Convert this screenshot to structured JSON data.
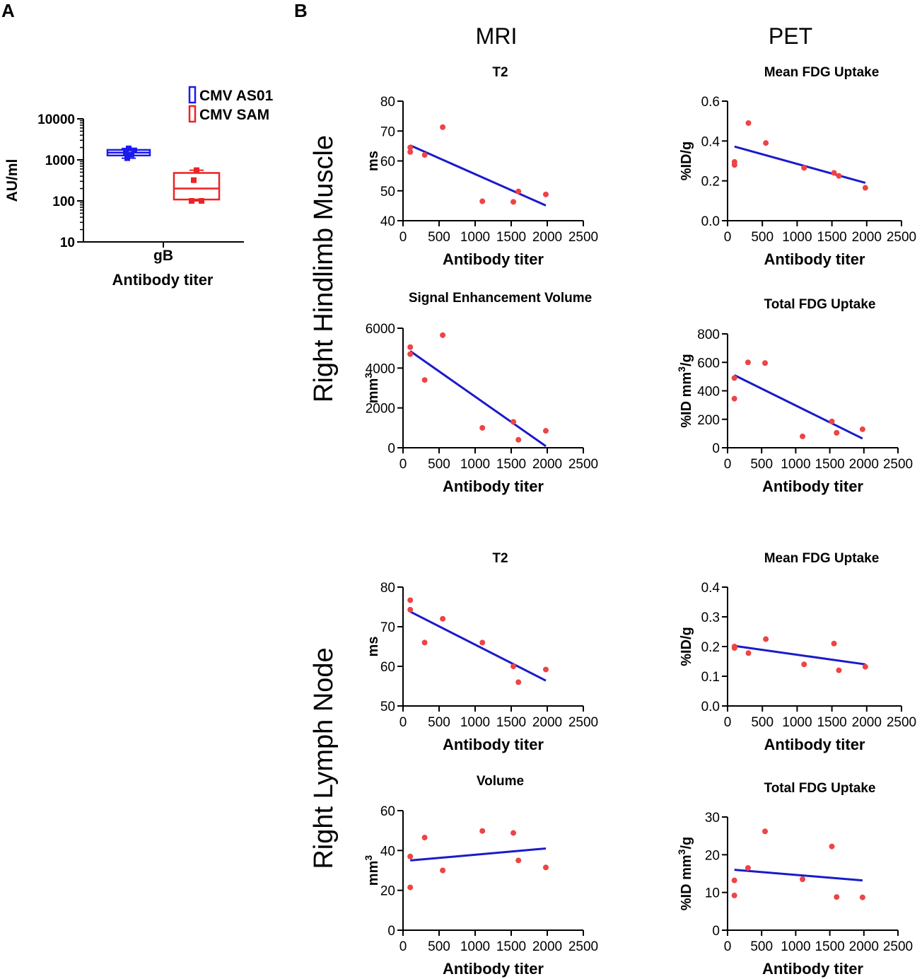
{
  "panel_labels": {
    "a": "A",
    "b": "B"
  },
  "column_headers": {
    "mri": "MRI",
    "pet": "PET"
  },
  "row_labels": {
    "muscle": "Right Hindlimb Muscle",
    "lymph": "Right Lymph Node"
  },
  "colors": {
    "line": "#1a1acc",
    "point": "#ee4444",
    "as01": "#1a1aee",
    "sam": "#ee2222",
    "axis": "#000000"
  },
  "chart_data": [
    {
      "id": "A",
      "type": "boxplot",
      "title": "",
      "xlabel": "Antibody titer",
      "ylabel": "AU/ml",
      "yscale": "log",
      "ylim": [
        10,
        10000
      ],
      "yticks": [
        10,
        100,
        1000,
        10000
      ],
      "yticklabels": [
        "10",
        "100",
        "1000",
        "10000"
      ],
      "categories": [
        "gB"
      ],
      "legend": [
        "CMV AS01",
        "CMV SAM"
      ],
      "legend_position": "top-right",
      "series": [
        {
          "name": "CMV AS01",
          "min": 1100,
          "q1": 1280,
          "median": 1500,
          "q3": 1750,
          "max": 1900,
          "points": [
            1900,
            1700,
            1500,
            1350,
            1100
          ]
        },
        {
          "name": "CMV SAM",
          "min": 100,
          "q1": 108,
          "median": 200,
          "q3": 480,
          "max": 560,
          "points": [
            560,
            320,
            100,
            100
          ]
        }
      ]
    },
    {
      "id": "B1",
      "type": "scatter",
      "title": "T2",
      "xlabel": "Antibody titer",
      "ylabel": "ms",
      "xlim": [
        0,
        2500
      ],
      "ylim": [
        40,
        80
      ],
      "xticks": [
        0,
        500,
        1000,
        1500,
        2000,
        2500
      ],
      "yticks": [
        40,
        50,
        60,
        70,
        80
      ],
      "x": [
        100,
        100,
        300,
        550,
        1100,
        1530,
        1600,
        1980
      ],
      "y": [
        64.5,
        63,
        62,
        71.3,
        46.5,
        46.3,
        49.8,
        48.8
      ],
      "fit": [
        [
          100,
          65.2
        ],
        [
          1980,
          45.1
        ]
      ]
    },
    {
      "id": "B2",
      "type": "scatter",
      "title": "Mean FDG Uptake",
      "xlabel": "Antibody titer",
      "ylabel": "%ID/g",
      "xlim": [
        0,
        2500
      ],
      "ylim": [
        0,
        0.6
      ],
      "xticks": [
        0,
        500,
        1000,
        1500,
        2000,
        2500
      ],
      "yticks": [
        0.0,
        0.2,
        0.4,
        0.6
      ],
      "yticklabels": [
        "0.0",
        "0.2",
        "0.4",
        "0.6"
      ],
      "x": [
        100,
        100,
        300,
        550,
        1100,
        1530,
        1600,
        1980
      ],
      "y": [
        0.295,
        0.28,
        0.49,
        0.39,
        0.265,
        0.24,
        0.225,
        0.165
      ],
      "fit": [
        [
          100,
          0.372
        ],
        [
          1980,
          0.19
        ]
      ]
    },
    {
      "id": "B3",
      "type": "scatter",
      "title": "Signal Enhancement Volume",
      "xlabel": "Antibody titer",
      "ylabel": "mm3",
      "xlim": [
        0,
        2500
      ],
      "ylim": [
        0,
        6000
      ],
      "xticks": [
        0,
        500,
        1000,
        1500,
        2000,
        2500
      ],
      "yticks": [
        0,
        2000,
        4000,
        6000
      ],
      "x": [
        100,
        100,
        300,
        550,
        1100,
        1530,
        1600,
        1980
      ],
      "y": [
        5050,
        4700,
        3400,
        5650,
        1000,
        1300,
        400,
        850
      ],
      "fit": [
        [
          100,
          4850
        ],
        [
          1980,
          80
        ]
      ]
    },
    {
      "id": "B4",
      "type": "scatter",
      "title": "Total FDG Uptake",
      "xlabel": "Antibody titer",
      "ylabel": "%ID mm3/g",
      "xlim": [
        0,
        2500
      ],
      "ylim": [
        0,
        800
      ],
      "xticks": [
        0,
        500,
        1000,
        1500,
        2000,
        2500
      ],
      "yticks": [
        0,
        200,
        400,
        600,
        800
      ],
      "x": [
        100,
        100,
        300,
        550,
        1100,
        1530,
        1600,
        1980
      ],
      "y": [
        490,
        345,
        600,
        595,
        80,
        185,
        105,
        130
      ],
      "fit": [
        [
          100,
          510
        ],
        [
          1980,
          65
        ]
      ]
    },
    {
      "id": "B5",
      "type": "scatter",
      "title": "T2",
      "xlabel": "Antibody titer",
      "ylabel": "ms",
      "xlim": [
        0,
        2500
      ],
      "ylim": [
        50,
        80
      ],
      "xticks": [
        0,
        500,
        1000,
        1500,
        2000,
        2500
      ],
      "yticks": [
        50,
        60,
        70,
        80
      ],
      "x": [
        100,
        100,
        300,
        550,
        1100,
        1530,
        1600,
        1980
      ],
      "y": [
        76.7,
        74.3,
        66,
        72,
        66,
        60,
        56,
        59.2
      ],
      "fit": [
        [
          100,
          73.8
        ],
        [
          1980,
          56.4
        ]
      ]
    },
    {
      "id": "B6",
      "type": "scatter",
      "title": "Mean FDG Uptake",
      "xlabel": "Antibody titer",
      "ylabel": "%ID/g",
      "xlim": [
        0,
        2500
      ],
      "ylim": [
        0,
        0.4
      ],
      "xticks": [
        0,
        500,
        1000,
        1500,
        2000,
        2500
      ],
      "yticks": [
        0.0,
        0.1,
        0.2,
        0.3,
        0.4
      ],
      "yticklabels": [
        "0.0",
        "0.1",
        "0.2",
        "0.3",
        "0.4"
      ],
      "x": [
        100,
        100,
        300,
        550,
        1100,
        1530,
        1600,
        1980
      ],
      "y": [
        0.2,
        0.195,
        0.178,
        0.225,
        0.14,
        0.21,
        0.12,
        0.132
      ],
      "fit": [
        [
          100,
          0.202
        ],
        [
          1980,
          0.14
        ]
      ]
    },
    {
      "id": "B7",
      "type": "scatter",
      "title": "Volume",
      "xlabel": "Antibody titer",
      "ylabel": "mm3",
      "xlim": [
        0,
        2500
      ],
      "ylim": [
        0,
        60
      ],
      "xticks": [
        0,
        500,
        1000,
        1500,
        2000,
        2500
      ],
      "yticks": [
        0,
        20,
        40,
        60
      ],
      "x": [
        100,
        100,
        300,
        550,
        1100,
        1530,
        1600,
        1980
      ],
      "y": [
        37,
        21.5,
        46.5,
        30,
        49.8,
        48.8,
        35,
        31.5
      ],
      "fit": [
        [
          100,
          35
        ],
        [
          1980,
          41
        ]
      ]
    },
    {
      "id": "B8",
      "type": "scatter",
      "title": "Total FDG Uptake",
      "xlabel": "Antibody titer",
      "ylabel": "%ID mm3/g",
      "xlim": [
        0,
        2500
      ],
      "ylim": [
        0,
        30
      ],
      "xticks": [
        0,
        500,
        1000,
        1500,
        2000,
        2500
      ],
      "yticks": [
        0,
        10,
        20,
        30
      ],
      "x": [
        100,
        100,
        300,
        550,
        1100,
        1530,
        1600,
        1980
      ],
      "y": [
        13.2,
        9.2,
        16.5,
        26.2,
        13.5,
        22.2,
        8.8,
        8.7
      ],
      "fit": [
        [
          100,
          16
        ],
        [
          1980,
          13.2
        ]
      ]
    }
  ]
}
